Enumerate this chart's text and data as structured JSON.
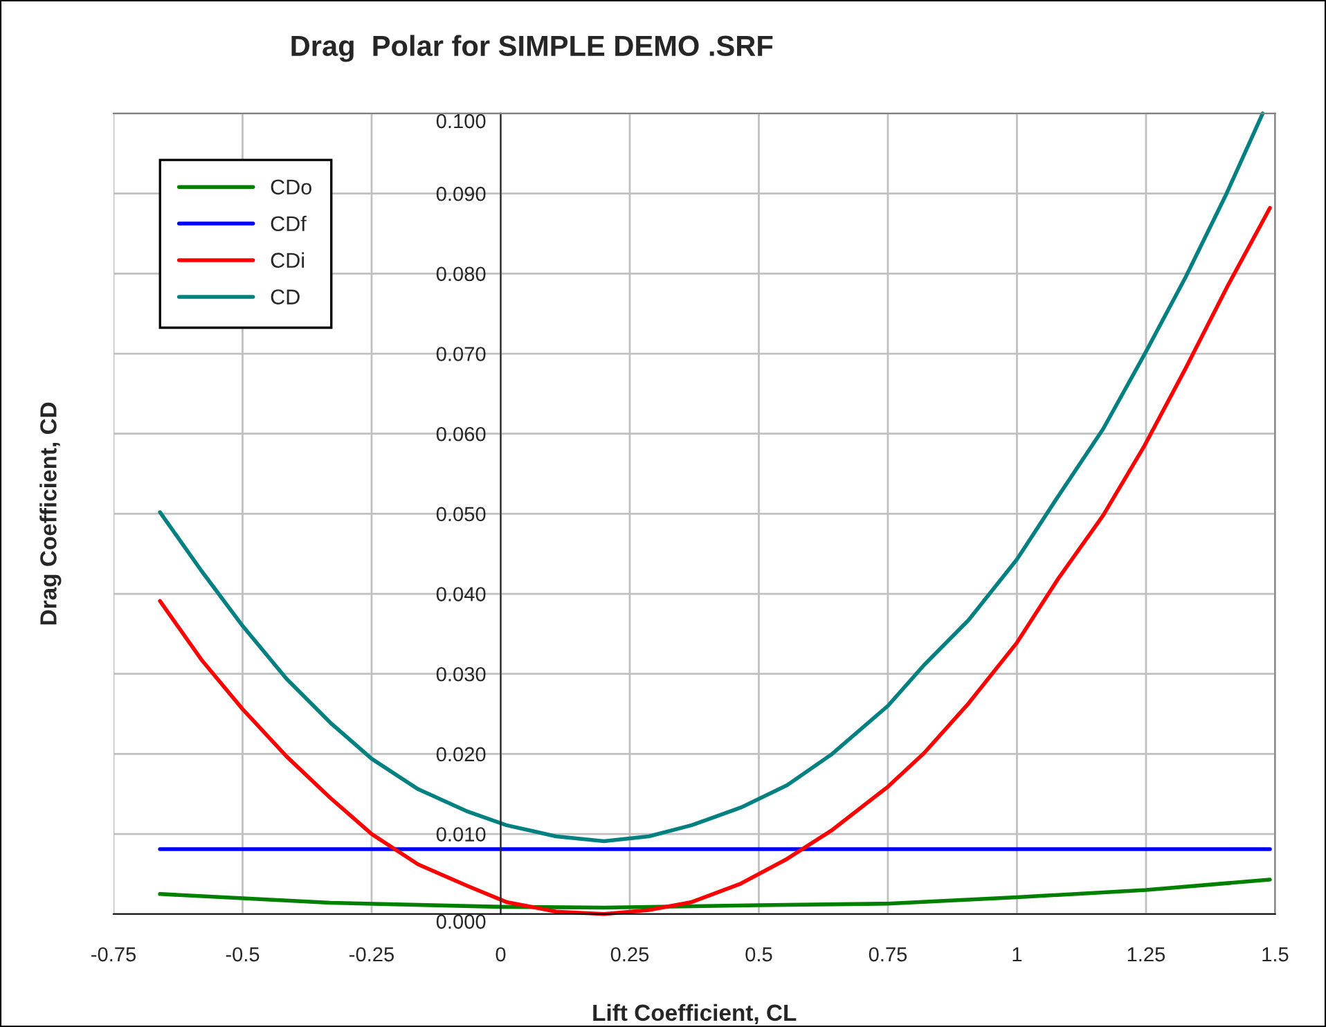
{
  "chart_data": {
    "type": "line",
    "title": "Drag  Polar for SIMPLE DEMO .SRF",
    "xlabel": "Lift Coefficient, CL",
    "ylabel": "Drag Coefficient, CD",
    "x": [
      -0.66,
      -0.58,
      -0.5,
      -0.415,
      -0.33,
      -0.25,
      -0.16,
      -0.064,
      0.011,
      0.107,
      0.2,
      0.287,
      0.37,
      0.465,
      0.555,
      0.64,
      0.75,
      0.82,
      0.906,
      1.0,
      1.08,
      1.167,
      1.247,
      1.327,
      1.406,
      1.49
    ],
    "series": [
      {
        "name": "CDo",
        "color": "#008000",
        "x": [
          -0.66,
          -0.33,
          0,
          0.2,
          0.5,
          0.75,
          1.0,
          1.25,
          1.49
        ],
        "values": [
          0.0025,
          0.0014,
          0.0009,
          0.0008,
          0.0011,
          0.0013,
          0.0021,
          0.003,
          0.0043
        ]
      },
      {
        "name": "CDf",
        "color": "#0000ff",
        "x": [
          -0.66,
          1.49
        ],
        "values": [
          0.0081,
          0.0081
        ]
      },
      {
        "name": "CDi",
        "color": "#ff0000",
        "values": [
          0.0391,
          0.0318,
          0.0256,
          0.0197,
          0.0145,
          0.01,
          0.0062,
          0.0035,
          0.0015,
          0.0003,
          0.0,
          0.0005,
          0.0015,
          0.0038,
          0.0069,
          0.0104,
          0.0159,
          0.0201,
          0.0263,
          0.0339,
          0.0419,
          0.0498,
          0.0585,
          0.0682,
          0.0782,
          0.0882
        ]
      },
      {
        "name": "CD",
        "color": "#008080",
        "x": [
          -0.66,
          -0.58,
          -0.5,
          -0.415,
          -0.33,
          -0.25,
          -0.16,
          -0.064,
          0.011,
          0.107,
          0.2,
          0.287,
          0.37,
          0.465,
          0.555,
          0.64,
          0.75,
          0.82,
          0.906,
          1.0,
          1.08,
          1.167,
          1.247,
          1.327,
          1.406,
          1.476
        ],
        "values": [
          0.0502,
          0.0429,
          0.036,
          0.0294,
          0.0239,
          0.0194,
          0.0156,
          0.0128,
          0.0111,
          0.0097,
          0.0091,
          0.0097,
          0.0111,
          0.0133,
          0.0161,
          0.0199,
          0.026,
          0.0311,
          0.0367,
          0.0443,
          0.0522,
          0.0606,
          0.0699,
          0.0796,
          0.09,
          0.1
        ]
      }
    ],
    "xlim": [
      -0.75,
      1.5
    ],
    "xticks": [
      -0.75,
      -0.5,
      -0.25,
      0,
      0.25,
      0.5,
      0.75,
      1,
      1.25,
      1.5
    ],
    "ylim": [
      0,
      0.1
    ],
    "yticks": [
      {
        "value": 0,
        "label": "0.000"
      },
      {
        "value": 0.01,
        "label": "0.010"
      },
      {
        "value": 0.02,
        "label": "0.020"
      },
      {
        "value": 0.03,
        "label": "0.030"
      },
      {
        "value": 0.04,
        "label": "0.040"
      },
      {
        "value": 0.05,
        "label": "0.050"
      },
      {
        "value": 0.06,
        "label": "0.060"
      },
      {
        "value": 0.07,
        "label": "0.070"
      },
      {
        "value": 0.08,
        "label": "0.080"
      },
      {
        "value": 0.09,
        "label": "0.090"
      },
      {
        "value": 0.1,
        "label": "0.100"
      }
    ],
    "grid": true,
    "legend": "top left",
    "marker": "none",
    "line_style": "solid"
  }
}
